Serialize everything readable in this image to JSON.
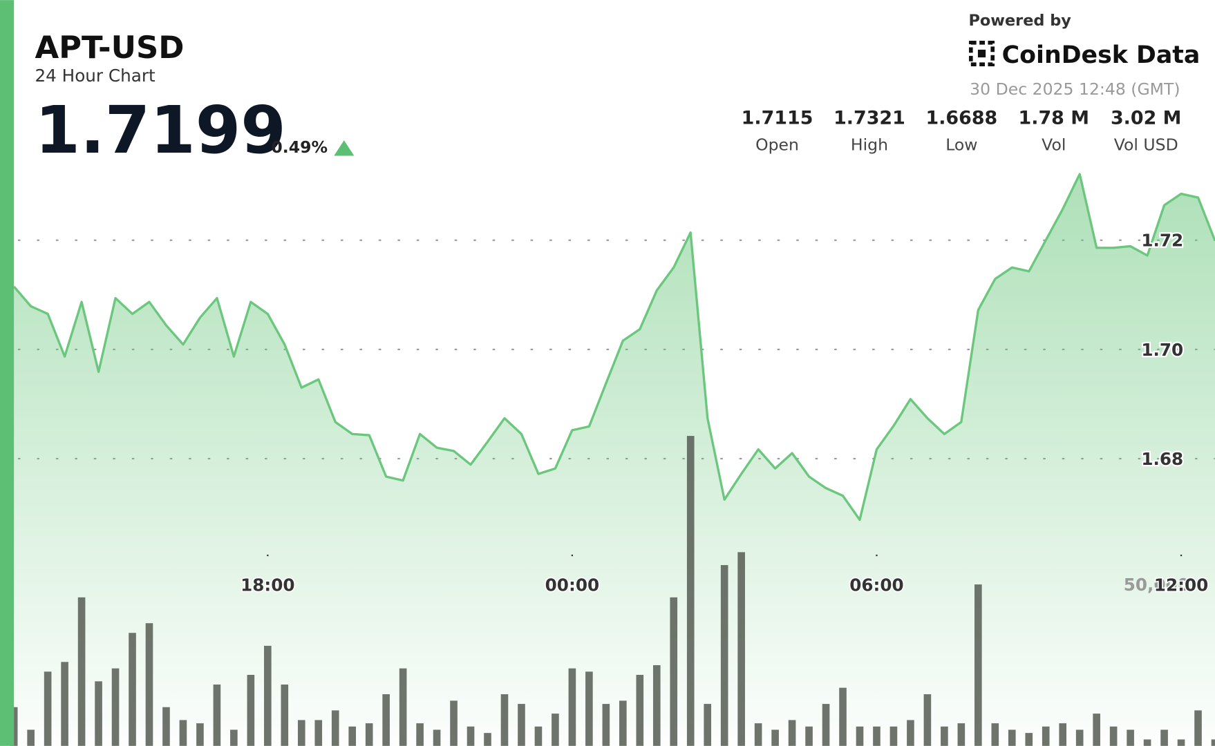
{
  "header": {
    "symbol": "APT-USD",
    "subtitle": "24 Hour Chart",
    "price": "1.7199",
    "change": "0.49%"
  },
  "branding": {
    "powered_by": "Powered by",
    "brand": "CoinDesk Data",
    "timestamp": "30 Dec 2025 12:48 (GMT)"
  },
  "stats": [
    {
      "value": "1.7115",
      "label": "Open"
    },
    {
      "value": "1.7321",
      "label": "High"
    },
    {
      "value": "1.6688",
      "label": "Low"
    },
    {
      "value": "1.78 M",
      "label": "Vol"
    },
    {
      "value": "3.02 M",
      "label": "Vol USD"
    }
  ],
  "chart_data": {
    "type": "line",
    "x": [
      "2025-12-29T13:00",
      "2025-12-29T13:20",
      "2025-12-29T13:40",
      "2025-12-29T14:00",
      "2025-12-29T14:20",
      "2025-12-29T14:40",
      "2025-12-29T15:00",
      "2025-12-29T15:20",
      "2025-12-29T15:40",
      "2025-12-29T16:00",
      "2025-12-29T16:20",
      "2025-12-29T16:40",
      "2025-12-29T17:00",
      "2025-12-29T17:20",
      "2025-12-29T17:40",
      "2025-12-29T18:00",
      "2025-12-29T18:20",
      "2025-12-29T18:40",
      "2025-12-29T19:00",
      "2025-12-29T19:20",
      "2025-12-29T19:40",
      "2025-12-29T20:00",
      "2025-12-29T20:20",
      "2025-12-29T20:40",
      "2025-12-29T21:00",
      "2025-12-29T21:20",
      "2025-12-29T21:40",
      "2025-12-29T22:00",
      "2025-12-29T22:20",
      "2025-12-29T22:40",
      "2025-12-29T23:00",
      "2025-12-29T23:20",
      "2025-12-29T23:40",
      "2025-12-30T00:00",
      "2025-12-30T00:20",
      "2025-12-30T00:40",
      "2025-12-30T01:00",
      "2025-12-30T01:20",
      "2025-12-30T01:40",
      "2025-12-30T02:00",
      "2025-12-30T02:20",
      "2025-12-30T02:40",
      "2025-12-30T03:00",
      "2025-12-30T03:20",
      "2025-12-30T03:40",
      "2025-12-30T04:00",
      "2025-12-30T04:20",
      "2025-12-30T04:40",
      "2025-12-30T05:00",
      "2025-12-30T05:20",
      "2025-12-30T05:40",
      "2025-12-30T06:00",
      "2025-12-30T06:20",
      "2025-12-30T06:40",
      "2025-12-30T07:00",
      "2025-12-30T07:20",
      "2025-12-30T07:40",
      "2025-12-30T08:00",
      "2025-12-30T08:20",
      "2025-12-30T08:40",
      "2025-12-30T09:00",
      "2025-12-30T09:20",
      "2025-12-30T09:40",
      "2025-12-30T10:00",
      "2025-12-30T10:20",
      "2025-12-30T10:40",
      "2025-12-30T11:00",
      "2025-12-30T11:20",
      "2025-12-30T11:40",
      "2025-12-30T12:00",
      "2025-12-30T12:20",
      "2025-12-30T12:40"
    ],
    "series": [
      {
        "color": "#6cc77e",
        "kind": "area",
        "values": [
          1.7115,
          1.7079,
          1.7065,
          1.6987,
          1.7087,
          1.6959,
          1.7094,
          1.7065,
          1.7087,
          1.7044,
          1.7009,
          1.7058,
          1.7094,
          1.6987,
          1.7087,
          1.7065,
          1.7009,
          1.693,
          1.6945,
          1.6867,
          1.6845,
          1.6843,
          1.6767,
          1.676,
          1.6845,
          1.682,
          1.6814,
          1.6789,
          1.6831,
          1.6874,
          1.6845,
          1.6772,
          1.6782,
          1.6852,
          1.6859,
          1.6938,
          1.7016,
          1.7037,
          1.7108,
          1.715,
          1.7214,
          1.6874,
          1.6725,
          1.6772,
          1.6817,
          1.6782,
          1.681,
          1.6767,
          1.6746,
          1.6732,
          1.6688,
          1.6817,
          1.686,
          1.6909,
          1.6874,
          1.6845,
          1.6867,
          1.7072,
          1.7129,
          1.715,
          1.7143,
          1.72,
          1.7257,
          1.7321,
          1.7186,
          1.7186,
          1.7189,
          1.7172,
          1.7264,
          1.7285,
          1.7278,
          1.7199
        ]
      },
      {
        "color": "#5a6158",
        "kind": "bar",
        "axis": "y2",
        "values": [
          12000,
          5000,
          23000,
          26000,
          46000,
          20000,
          24000,
          35000,
          38000,
          12000,
          8000,
          7000,
          19000,
          5000,
          22000,
          31000,
          19000,
          8000,
          8000,
          11000,
          6000,
          7000,
          16000,
          24000,
          7000,
          5000,
          14000,
          6000,
          4000,
          16000,
          13000,
          6000,
          10000,
          24000,
          23000,
          13000,
          14000,
          22000,
          25000,
          46000,
          96000,
          13000,
          56000,
          60000,
          7000,
          5000,
          8000,
          6000,
          13000,
          18000,
          6000,
          6000,
          6000,
          8000,
          16000,
          6000,
          7000,
          50000,
          7000,
          5000,
          4000,
          6000,
          7000,
          5000,
          10000,
          6000,
          5000,
          2000,
          5000,
          2000,
          11000,
          2000
        ]
      }
    ],
    "xlim": [
      "2025-12-29T13:00",
      "2025-12-30T12:40"
    ],
    "xticks": [
      {
        "value": "2025-12-29T18:00",
        "label": "18:00"
      },
      {
        "value": "2025-12-30T00:00",
        "label": "00:00"
      },
      {
        "value": "2025-12-30T06:00",
        "label": "06:00"
      },
      {
        "value": "2025-12-30T12:00",
        "label": "12:00"
      }
    ],
    "ylim": [
      1.6274,
      1.7356
    ],
    "yticks": [
      1.68,
      {
        "value": 1.7,
        "label": "1.70"
      },
      1.72
    ],
    "y2lim": [
      0,
      183000
    ],
    "y2ticks": [
      {
        "value": 50000,
        "label": "50,000"
      }
    ],
    "grid": true
  }
}
